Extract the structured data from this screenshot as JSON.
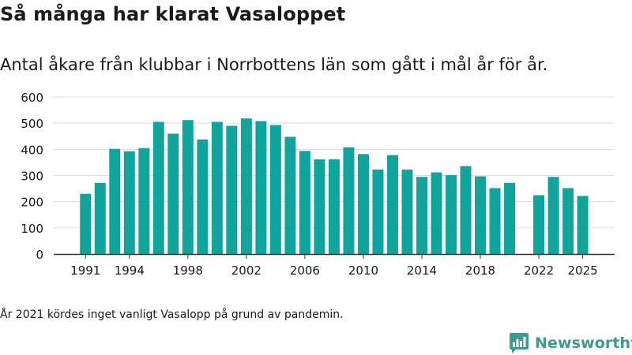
{
  "title": "Så många har klarat Vasaloppet",
  "subtitle": "Antal åkare från klubbar i Norrbottens län som gått i mål år för år.",
  "footnote": "År 2021 kördes inget vanligt Vasalopp på grund av pandemin.",
  "brand": {
    "name": "Newsworthy",
    "color": "#3f9a8f",
    "icon": "newsworthy-logo-icon"
  },
  "colors": {
    "bar": "#0fa59c",
    "grid": "#dcdcdc",
    "axis": "#333333",
    "text": "#1a1a1a"
  },
  "chart_data": {
    "type": "bar",
    "title": "Så många har klarat Vasaloppet",
    "xlabel": "",
    "ylabel": "",
    "x": [
      1991,
      1992,
      1993,
      1994,
      1995,
      1996,
      1997,
      1998,
      1999,
      2000,
      2001,
      2002,
      2003,
      2004,
      2005,
      2006,
      2007,
      2008,
      2009,
      2010,
      2011,
      2012,
      2013,
      2014,
      2015,
      2016,
      2017,
      2018,
      2019,
      2020,
      2021,
      2022,
      2023,
      2024,
      2025
    ],
    "values": [
      230,
      272,
      402,
      393,
      405,
      505,
      460,
      512,
      438,
      505,
      490,
      518,
      508,
      493,
      448,
      394,
      362,
      362,
      408,
      382,
      323,
      378,
      323,
      295,
      312,
      302,
      336,
      297,
      252,
      272,
      null,
      225,
      295,
      252,
      222
    ],
    "ylim": [
      0,
      600
    ],
    "yticks": [
      0,
      100,
      200,
      300,
      400,
      500,
      600
    ],
    "xticks": [
      1991,
      1994,
      1998,
      2002,
      2006,
      2010,
      2014,
      2018,
      2022,
      2025
    ],
    "grid": true
  }
}
